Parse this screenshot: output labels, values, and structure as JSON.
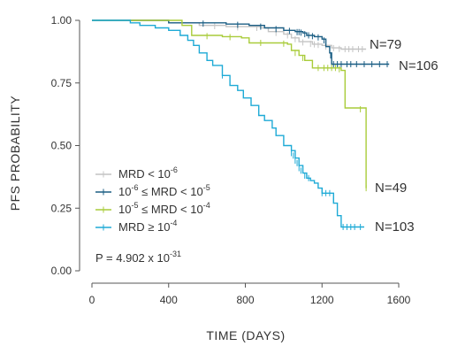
{
  "chart_data": {
    "type": "line",
    "step": true,
    "xlabel": "TIME (DAYS)",
    "ylabel": "PFS PROBABILITY",
    "xlim": [
      0,
      1600
    ],
    "ylim": [
      0,
      1.0
    ],
    "xticks": [
      0,
      400,
      800,
      1200,
      1600
    ],
    "xtick_labels": [
      "0",
      "400",
      "800",
      "1200",
      "1600"
    ],
    "yticks": [
      0,
      0.25,
      0.5,
      0.75,
      1.0
    ],
    "ytick_labels": [
      "0.00",
      "0.25",
      "0.50",
      "0.75",
      "1.00"
    ],
    "grid": false,
    "legend_position": "bottom-left",
    "annotation": "P = 4.902 x 10",
    "annotation_exp": "-31",
    "series": [
      {
        "name": "MRD < 10^-6",
        "legend_parts": [
          "MRD < 10",
          "-6",
          ""
        ],
        "color": "#c4c4c4",
        "n_label": "N=79",
        "points": [
          [
            0,
            1.0
          ],
          [
            120,
            1.0
          ],
          [
            400,
            0.99
          ],
          [
            560,
            0.98
          ],
          [
            700,
            0.975
          ],
          [
            880,
            0.97
          ],
          [
            920,
            0.955
          ],
          [
            1000,
            0.945
          ],
          [
            1040,
            0.93
          ],
          [
            1080,
            0.915
          ],
          [
            1150,
            0.905
          ],
          [
            1200,
            0.9
          ],
          [
            1250,
            0.89
          ],
          [
            1300,
            0.885
          ],
          [
            1430,
            0.885
          ]
        ],
        "censors": [
          [
            640,
            0.977
          ],
          [
            760,
            0.972
          ],
          [
            860,
            0.97
          ],
          [
            960,
            0.95
          ],
          [
            1020,
            0.94
          ],
          [
            1060,
            0.925
          ],
          [
            1100,
            0.912
          ],
          [
            1140,
            0.906
          ],
          [
            1160,
            0.904
          ],
          [
            1180,
            0.902
          ],
          [
            1220,
            0.895
          ],
          [
            1260,
            0.889
          ],
          [
            1290,
            0.886
          ],
          [
            1320,
            0.885
          ],
          [
            1340,
            0.885
          ],
          [
            1360,
            0.885
          ],
          [
            1390,
            0.885
          ],
          [
            1410,
            0.885
          ]
        ]
      },
      {
        "name": "10^-6 ≤ MRD < 10^-5",
        "legend_parts": [
          "10",
          "-6",
          " ≤ MRD < 10",
          "-5",
          ""
        ],
        "color": "#1b5e84",
        "n_label": "N=106",
        "points": [
          [
            0,
            1.0
          ],
          [
            120,
            1.0
          ],
          [
            400,
            0.99
          ],
          [
            700,
            0.985
          ],
          [
            820,
            0.98
          ],
          [
            900,
            0.97
          ],
          [
            1000,
            0.96
          ],
          [
            1060,
            0.955
          ],
          [
            1100,
            0.95
          ],
          [
            1120,
            0.94
          ],
          [
            1160,
            0.935
          ],
          [
            1200,
            0.925
          ],
          [
            1220,
            0.895
          ],
          [
            1240,
            0.87
          ],
          [
            1250,
            0.825
          ],
          [
            1550,
            0.825
          ]
        ],
        "censors": [
          [
            580,
            0.987
          ],
          [
            760,
            0.982
          ],
          [
            880,
            0.975
          ],
          [
            960,
            0.965
          ],
          [
            1030,
            0.958
          ],
          [
            1070,
            0.953
          ],
          [
            1080,
            0.953
          ],
          [
            1090,
            0.951
          ],
          [
            1110,
            0.945
          ],
          [
            1130,
            0.94
          ],
          [
            1150,
            0.937
          ],
          [
            1180,
            0.932
          ],
          [
            1210,
            0.92
          ],
          [
            1245,
            0.86
          ],
          [
            1260,
            0.825
          ],
          [
            1280,
            0.825
          ],
          [
            1300,
            0.825
          ],
          [
            1330,
            0.825
          ],
          [
            1350,
            0.825
          ],
          [
            1380,
            0.825
          ],
          [
            1420,
            0.825
          ],
          [
            1460,
            0.825
          ],
          [
            1500,
            0.825
          ],
          [
            1540,
            0.825
          ]
        ]
      },
      {
        "name": "10^-5 ≤ MRD < 10^-4",
        "legend_parts": [
          "10",
          "-5",
          " ≤ MRD < 10",
          "-4",
          ""
        ],
        "color": "#a9cc3a",
        "n_label": "N=49",
        "points": [
          [
            0,
            1.0
          ],
          [
            400,
            1.0
          ],
          [
            470,
            0.98
          ],
          [
            520,
            0.94
          ],
          [
            680,
            0.935
          ],
          [
            780,
            0.93
          ],
          [
            820,
            0.91
          ],
          [
            1020,
            0.905
          ],
          [
            1040,
            0.88
          ],
          [
            1080,
            0.86
          ],
          [
            1110,
            0.84
          ],
          [
            1150,
            0.81
          ],
          [
            1280,
            0.81
          ],
          [
            1300,
            0.8
          ],
          [
            1320,
            0.65
          ],
          [
            1430,
            0.64
          ],
          [
            1430,
            0.33
          ]
        ],
        "censors": [
          [
            600,
            0.937
          ],
          [
            720,
            0.933
          ],
          [
            880,
            0.91
          ],
          [
            1000,
            0.907
          ],
          [
            1060,
            0.87
          ],
          [
            1100,
            0.85
          ],
          [
            1180,
            0.81
          ],
          [
            1210,
            0.81
          ],
          [
            1230,
            0.81
          ],
          [
            1250,
            0.81
          ],
          [
            1270,
            0.81
          ],
          [
            1290,
            0.805
          ],
          [
            1400,
            0.645
          ],
          [
            1430,
            0.33
          ]
        ]
      },
      {
        "name": "MRD ≥ 10^-4",
        "legend_parts": [
          "MRD ≥ 10",
          "-4",
          ""
        ],
        "color": "#1eaad6",
        "n_label": "N=103",
        "points": [
          [
            0,
            1.0
          ],
          [
            200,
            0.99
          ],
          [
            250,
            0.98
          ],
          [
            330,
            0.97
          ],
          [
            400,
            0.96
          ],
          [
            460,
            0.94
          ],
          [
            500,
            0.92
          ],
          [
            530,
            0.9
          ],
          [
            560,
            0.87
          ],
          [
            600,
            0.84
          ],
          [
            630,
            0.82
          ],
          [
            680,
            0.78
          ],
          [
            720,
            0.74
          ],
          [
            760,
            0.72
          ],
          [
            790,
            0.69
          ],
          [
            830,
            0.66
          ],
          [
            870,
            0.62
          ],
          [
            900,
            0.6
          ],
          [
            940,
            0.57
          ],
          [
            960,
            0.54
          ],
          [
            1000,
            0.5
          ],
          [
            1020,
            0.5
          ],
          [
            1040,
            0.48
          ],
          [
            1060,
            0.45
          ],
          [
            1080,
            0.42
          ],
          [
            1100,
            0.39
          ],
          [
            1120,
            0.37
          ],
          [
            1140,
            0.36
          ],
          [
            1160,
            0.35
          ],
          [
            1180,
            0.33
          ],
          [
            1200,
            0.31
          ],
          [
            1240,
            0.31
          ],
          [
            1260,
            0.27
          ],
          [
            1280,
            0.22
          ],
          [
            1300,
            0.175
          ],
          [
            1420,
            0.175
          ]
        ],
        "censors": [
          [
            680,
            0.78
          ],
          [
            1040,
            0.47
          ],
          [
            1050,
            0.46
          ],
          [
            1060,
            0.44
          ],
          [
            1070,
            0.43
          ],
          [
            1080,
            0.41
          ],
          [
            1090,
            0.4
          ],
          [
            1110,
            0.38
          ],
          [
            1130,
            0.37
          ],
          [
            1200,
            0.31
          ],
          [
            1220,
            0.31
          ],
          [
            1240,
            0.31
          ],
          [
            1260,
            0.28
          ],
          [
            1310,
            0.175
          ],
          [
            1330,
            0.175
          ],
          [
            1350,
            0.175
          ],
          [
            1370,
            0.175
          ],
          [
            1400,
            0.175
          ]
        ]
      }
    ]
  }
}
